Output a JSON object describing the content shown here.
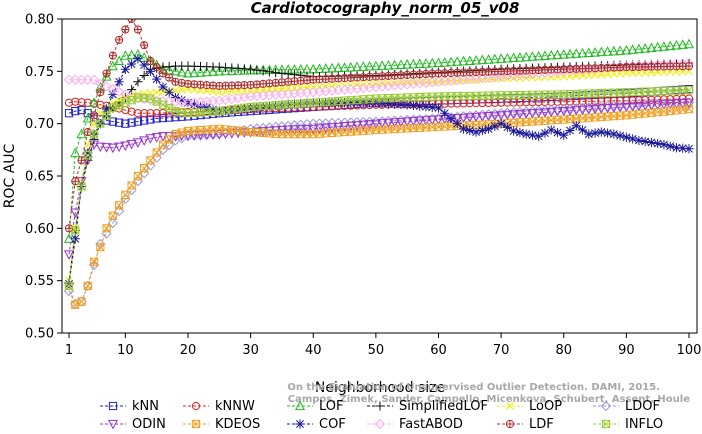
{
  "chart_data": {
    "type": "line",
    "title": "Cardiotocography_norm_05_v08",
    "xlabel": "Neighborhood size",
    "ylabel": "ROC AUC",
    "xlim": [
      1,
      100
    ],
    "ylim": [
      0.5,
      0.8
    ],
    "xticks": [
      1,
      10,
      20,
      30,
      40,
      50,
      60,
      70,
      80,
      90,
      100
    ],
    "yticks": [
      0.5,
      0.55,
      0.6,
      0.65,
      0.7,
      0.75,
      0.8
    ],
    "xtick_labels": [
      "1",
      "10",
      "20",
      "30",
      "40",
      "50",
      "60",
      "70",
      "80",
      "90",
      "100"
    ],
    "ytick_labels": [
      "0.50",
      "0.55",
      "0.60",
      "0.65",
      "0.70",
      "0.75",
      "0.80"
    ],
    "grid": false,
    "legend_position": "bottom",
    "watermark": [
      "Campos, Zimek, Sander, Campello, Micenkova, Schubert, Assent, Houle",
      "On the Evaluation of Unsupervised Outlier Detection. DAMI, 2015."
    ],
    "series": [
      {
        "name": "kNN",
        "color": "#2222cc",
        "marker": "square",
        "points": [
          [
            1,
            0.71
          ],
          [
            2,
            0.712
          ],
          [
            3,
            0.713
          ],
          [
            4,
            0.71
          ],
          [
            5,
            0.706
          ],
          [
            6,
            0.704
          ],
          [
            8,
            0.702
          ],
          [
            10,
            0.7
          ],
          [
            12,
            0.702
          ],
          [
            15,
            0.705
          ],
          [
            20,
            0.707
          ],
          [
            25,
            0.71
          ],
          [
            30,
            0.712
          ],
          [
            40,
            0.716
          ],
          [
            50,
            0.72
          ],
          [
            60,
            0.722
          ],
          [
            70,
            0.724
          ],
          [
            80,
            0.726
          ],
          [
            90,
            0.729
          ],
          [
            100,
            0.733
          ]
        ]
      },
      {
        "name": "kNNW",
        "color": "#dd2222",
        "marker": "circle",
        "points": [
          [
            1,
            0.72
          ],
          [
            2,
            0.721
          ],
          [
            4,
            0.72
          ],
          [
            6,
            0.718
          ],
          [
            8,
            0.716
          ],
          [
            10,
            0.713
          ],
          [
            12,
            0.71
          ],
          [
            15,
            0.71
          ],
          [
            20,
            0.711
          ],
          [
            25,
            0.712
          ],
          [
            30,
            0.714
          ],
          [
            40,
            0.716
          ],
          [
            50,
            0.718
          ],
          [
            60,
            0.719
          ],
          [
            70,
            0.72
          ],
          [
            80,
            0.721
          ],
          [
            90,
            0.722
          ],
          [
            100,
            0.724
          ]
        ]
      },
      {
        "name": "LOF",
        "color": "#22bb22",
        "marker": "triangle-up",
        "points": [
          [
            1,
            0.59
          ],
          [
            2,
            0.672
          ],
          [
            3,
            0.69
          ],
          [
            4,
            0.705
          ],
          [
            5,
            0.72
          ],
          [
            6,
            0.735
          ],
          [
            8,
            0.755
          ],
          [
            10,
            0.765
          ],
          [
            12,
            0.766
          ],
          [
            14,
            0.76
          ],
          [
            16,
            0.752
          ],
          [
            18,
            0.75
          ],
          [
            20,
            0.748
          ],
          [
            25,
            0.75
          ],
          [
            30,
            0.751
          ],
          [
            40,
            0.752
          ],
          [
            50,
            0.755
          ],
          [
            60,
            0.758
          ],
          [
            70,
            0.762
          ],
          [
            80,
            0.766
          ],
          [
            90,
            0.77
          ],
          [
            100,
            0.776
          ]
        ]
      },
      {
        "name": "SimplifiedLOF",
        "color": "#111111",
        "marker": "plus",
        "points": [
          [
            1,
            0.548
          ],
          [
            2,
            0.598
          ],
          [
            3,
            0.64
          ],
          [
            4,
            0.665
          ],
          [
            5,
            0.685
          ],
          [
            6,
            0.7
          ],
          [
            8,
            0.715
          ],
          [
            10,
            0.725
          ],
          [
            12,
            0.74
          ],
          [
            14,
            0.752
          ],
          [
            16,
            0.754
          ],
          [
            18,
            0.755
          ],
          [
            20,
            0.755
          ],
          [
            25,
            0.754
          ],
          [
            30,
            0.752
          ],
          [
            35,
            0.748
          ],
          [
            40,
            0.745
          ],
          [
            50,
            0.746
          ],
          [
            60,
            0.749
          ],
          [
            70,
            0.752
          ],
          [
            80,
            0.754
          ],
          [
            90,
            0.756
          ],
          [
            100,
            0.758
          ]
        ]
      },
      {
        "name": "LoOP",
        "color": "#eeee00",
        "marker": "x",
        "points": [
          [
            1,
            0.55
          ],
          [
            2,
            0.6
          ],
          [
            3,
            0.645
          ],
          [
            4,
            0.68
          ],
          [
            5,
            0.7
          ],
          [
            6,
            0.71
          ],
          [
            8,
            0.72
          ],
          [
            10,
            0.725
          ],
          [
            12,
            0.728
          ],
          [
            15,
            0.73
          ],
          [
            20,
            0.733
          ],
          [
            25,
            0.73
          ],
          [
            30,
            0.732
          ],
          [
            40,
            0.735
          ],
          [
            50,
            0.738
          ],
          [
            60,
            0.74
          ],
          [
            70,
            0.743
          ],
          [
            80,
            0.745
          ],
          [
            90,
            0.748
          ],
          [
            100,
            0.75
          ]
        ]
      },
      {
        "name": "LDOF",
        "color": "#9999dd",
        "marker": "diamond",
        "points": [
          [
            1,
            0.54
          ],
          [
            2,
            0.528
          ],
          [
            3,
            0.53
          ],
          [
            4,
            0.545
          ],
          [
            5,
            0.565
          ],
          [
            6,
            0.585
          ],
          [
            8,
            0.605
          ],
          [
            10,
            0.628
          ],
          [
            12,
            0.645
          ],
          [
            14,
            0.66
          ],
          [
            16,
            0.675
          ],
          [
            18,
            0.684
          ],
          [
            20,
            0.688
          ],
          [
            25,
            0.69
          ],
          [
            30,
            0.695
          ],
          [
            40,
            0.7
          ],
          [
            50,
            0.702
          ],
          [
            60,
            0.705
          ],
          [
            70,
            0.71
          ],
          [
            80,
            0.714
          ],
          [
            90,
            0.718
          ],
          [
            100,
            0.72
          ]
        ]
      },
      {
        "name": "ODIN",
        "color": "#9933cc",
        "marker": "triangle-down",
        "points": [
          [
            1,
            0.575
          ],
          [
            2,
            0.615
          ],
          [
            3,
            0.645
          ],
          [
            4,
            0.665
          ],
          [
            5,
            0.68
          ],
          [
            6,
            0.678
          ],
          [
            8,
            0.677
          ],
          [
            10,
            0.679
          ],
          [
            12,
            0.682
          ],
          [
            14,
            0.686
          ],
          [
            16,
            0.688
          ],
          [
            18,
            0.688
          ],
          [
            20,
            0.689
          ],
          [
            25,
            0.69
          ],
          [
            30,
            0.692
          ],
          [
            35,
            0.694
          ],
          [
            40,
            0.695
          ],
          [
            50,
            0.7
          ],
          [
            60,
            0.704
          ],
          [
            70,
            0.708
          ],
          [
            80,
            0.712
          ],
          [
            90,
            0.716
          ],
          [
            100,
            0.72
          ]
        ]
      },
      {
        "name": "KDEOS",
        "color": "#f0a020",
        "marker": "square-x",
        "points": [
          [
            1,
            0.545
          ],
          [
            2,
            0.527
          ],
          [
            3,
            0.53
          ],
          [
            4,
            0.545
          ],
          [
            5,
            0.568
          ],
          [
            6,
            0.582
          ],
          [
            7,
            0.6
          ],
          [
            8,
            0.612
          ],
          [
            10,
            0.632
          ],
          [
            12,
            0.65
          ],
          [
            14,
            0.665
          ],
          [
            16,
            0.68
          ],
          [
            18,
            0.69
          ],
          [
            20,
            0.693
          ],
          [
            25,
            0.695
          ],
          [
            30,
            0.692
          ],
          [
            35,
            0.69
          ],
          [
            40,
            0.69
          ],
          [
            45,
            0.692
          ],
          [
            50,
            0.694
          ],
          [
            60,
            0.697
          ],
          [
            70,
            0.7
          ],
          [
            80,
            0.704
          ],
          [
            90,
            0.708
          ],
          [
            100,
            0.714
          ]
        ]
      },
      {
        "name": "COF",
        "color": "#1a1a99",
        "marker": "star",
        "points": [
          [
            1,
            0.547
          ],
          [
            2,
            0.59
          ],
          [
            3,
            0.64
          ],
          [
            4,
            0.672
          ],
          [
            5,
            0.69
          ],
          [
            6,
            0.7
          ],
          [
            8,
            0.728
          ],
          [
            10,
            0.752
          ],
          [
            12,
            0.762
          ],
          [
            14,
            0.75
          ],
          [
            16,
            0.735
          ],
          [
            18,
            0.725
          ],
          [
            20,
            0.72
          ],
          [
            25,
            0.712
          ],
          [
            30,
            0.715
          ],
          [
            35,
            0.718
          ],
          [
            40,
            0.72
          ],
          [
            45,
            0.72
          ],
          [
            50,
            0.72
          ],
          [
            55,
            0.718
          ],
          [
            60,
            0.715
          ],
          [
            62,
            0.705
          ],
          [
            64,
            0.695
          ],
          [
            66,
            0.692
          ],
          [
            68,
            0.695
          ],
          [
            70,
            0.7
          ],
          [
            72,
            0.693
          ],
          [
            74,
            0.69
          ],
          [
            76,
            0.688
          ],
          [
            78,
            0.694
          ],
          [
            80,
            0.689
          ],
          [
            82,
            0.698
          ],
          [
            84,
            0.69
          ],
          [
            86,
            0.692
          ],
          [
            88,
            0.69
          ],
          [
            90,
            0.687
          ],
          [
            92,
            0.684
          ],
          [
            94,
            0.682
          ],
          [
            96,
            0.68
          ],
          [
            98,
            0.677
          ],
          [
            100,
            0.676
          ]
        ]
      },
      {
        "name": "FastABOD",
        "color": "#ffaaee",
        "marker": "diamond",
        "points": [
          [
            1,
            0.742
          ],
          [
            2,
            0.742
          ],
          [
            3,
            0.742
          ],
          [
            4,
            0.742
          ],
          [
            5,
            0.742
          ],
          [
            6,
            0.738
          ],
          [
            8,
            0.733
          ],
          [
            10,
            0.728
          ],
          [
            12,
            0.724
          ],
          [
            15,
            0.722
          ],
          [
            20,
            0.72
          ],
          [
            25,
            0.722
          ],
          [
            30,
            0.726
          ],
          [
            40,
            0.73
          ],
          [
            50,
            0.735
          ],
          [
            60,
            0.74
          ],
          [
            70,
            0.745
          ],
          [
            80,
            0.75
          ],
          [
            90,
            0.755
          ],
          [
            100,
            0.758
          ]
        ]
      },
      {
        "name": "LDF",
        "color": "#b03030",
        "marker": "circle-plus",
        "points": [
          [
            1,
            0.6
          ],
          [
            2,
            0.645
          ],
          [
            3,
            0.665
          ],
          [
            4,
            0.692
          ],
          [
            5,
            0.708
          ],
          [
            6,
            0.73
          ],
          [
            7,
            0.748
          ],
          [
            8,
            0.765
          ],
          [
            9,
            0.78
          ],
          [
            10,
            0.79
          ],
          [
            11,
            0.8
          ],
          [
            12,
            0.79
          ],
          [
            13,
            0.775
          ],
          [
            14,
            0.76
          ],
          [
            16,
            0.748
          ],
          [
            18,
            0.74
          ],
          [
            20,
            0.738
          ],
          [
            25,
            0.736
          ],
          [
            30,
            0.737
          ],
          [
            40,
            0.742
          ],
          [
            50,
            0.745
          ],
          [
            60,
            0.748
          ],
          [
            70,
            0.75
          ],
          [
            80,
            0.752
          ],
          [
            90,
            0.754
          ],
          [
            100,
            0.755
          ]
        ]
      },
      {
        "name": "INFLO",
        "color": "#99cc33",
        "marker": "square-x",
        "points": [
          [
            1,
            0.545
          ],
          [
            2,
            0.598
          ],
          [
            3,
            0.64
          ],
          [
            4,
            0.67
          ],
          [
            5,
            0.69
          ],
          [
            6,
            0.7
          ],
          [
            8,
            0.715
          ],
          [
            10,
            0.72
          ],
          [
            12,
            0.725
          ],
          [
            14,
            0.724
          ],
          [
            16,
            0.718
          ],
          [
            18,
            0.712
          ],
          [
            20,
            0.71
          ],
          [
            25,
            0.712
          ],
          [
            30,
            0.716
          ],
          [
            40,
            0.72
          ],
          [
            50,
            0.724
          ],
          [
            60,
            0.726
          ],
          [
            70,
            0.727
          ],
          [
            80,
            0.728
          ],
          [
            90,
            0.73
          ],
          [
            100,
            0.732
          ]
        ]
      }
    ]
  }
}
